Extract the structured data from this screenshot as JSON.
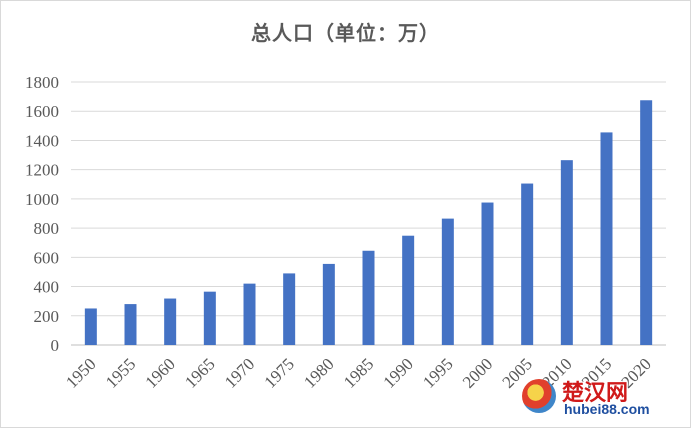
{
  "chart_data": {
    "type": "bar",
    "title": "总人口（单位：万）",
    "categories": [
      "1950",
      "1955",
      "1960",
      "1965",
      "1970",
      "1975",
      "1980",
      "1985",
      "1990",
      "1995",
      "2000",
      "2005",
      "2010",
      "2015",
      "2020"
    ],
    "values": [
      250,
      280,
      318,
      365,
      420,
      490,
      555,
      645,
      748,
      865,
      975,
      1105,
      1265,
      1455,
      1675
    ],
    "ylim": [
      0,
      1800
    ],
    "yticks": [
      0,
      200,
      400,
      600,
      800,
      1000,
      1200,
      1400,
      1600,
      1800
    ],
    "grid": true,
    "bar_color": "#4472c4",
    "xlabel": "",
    "ylabel": ""
  },
  "watermark": {
    "name": "楚汉网",
    "url": "hubei88.com"
  }
}
